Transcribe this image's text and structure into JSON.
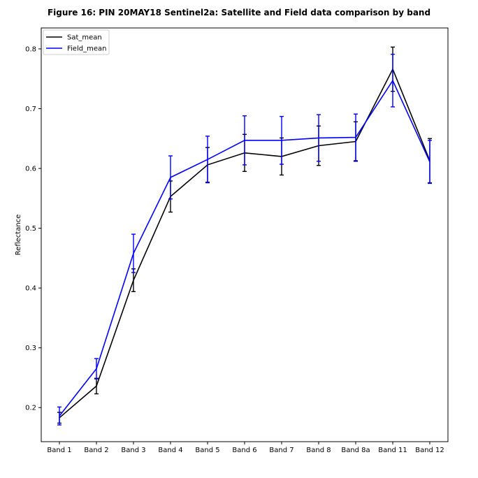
{
  "chart_data": {
    "type": "line",
    "title": "Figure 16: PIN 20MAY18  Sentinel2a: Satellite and Field data comparison by band",
    "xlabel": "",
    "ylabel": "Reflectance",
    "categories": [
      "Band 1",
      "Band 2",
      "Band 3",
      "Band 4",
      "Band 5",
      "Band 6",
      "Band 7",
      "Band 8",
      "Band 8a",
      "Band 11",
      "Band 12"
    ],
    "ylim": [
      0.143,
      0.835
    ],
    "yticks": [
      0.2,
      0.3,
      0.4,
      0.5,
      0.6,
      0.7,
      0.8
    ],
    "ytick_labels": [
      "0.2",
      "0.3",
      "0.4",
      "0.5",
      "0.6",
      "0.7",
      "0.8"
    ],
    "grid": false,
    "legend_position": "top-left",
    "series": [
      {
        "name": "Sat_mean",
        "color": "#000000",
        "values": [
          0.183,
          0.236,
          0.413,
          0.553,
          0.606,
          0.626,
          0.62,
          0.638,
          0.645,
          0.766,
          0.613
        ],
        "errors": [
          0.009,
          0.013,
          0.019,
          0.026,
          0.029,
          0.031,
          0.031,
          0.033,
          0.033,
          0.037,
          0.037
        ]
      },
      {
        "name": "Field_mean",
        "color": "#0000ff",
        "values": [
          0.186,
          0.265,
          0.458,
          0.585,
          0.615,
          0.647,
          0.647,
          0.651,
          0.652,
          0.747,
          0.611
        ],
        "errors": [
          0.015,
          0.017,
          0.032,
          0.036,
          0.039,
          0.041,
          0.04,
          0.039,
          0.039,
          0.044,
          0.036
        ]
      }
    ]
  }
}
